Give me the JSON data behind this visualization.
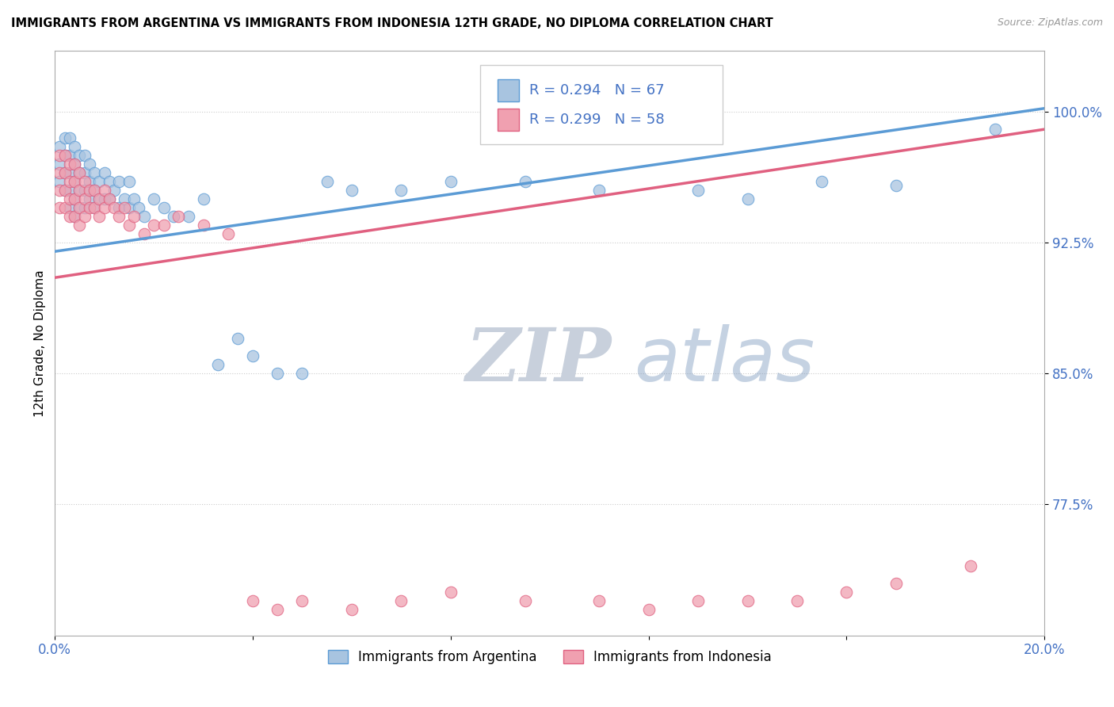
{
  "title": "IMMIGRANTS FROM ARGENTINA VS IMMIGRANTS FROM INDONESIA 12TH GRADE, NO DIPLOMA CORRELATION CHART",
  "source": "Source: ZipAtlas.com",
  "ylabel": "12th Grade, No Diploma",
  "xlim": [
    0.0,
    0.2
  ],
  "ylim": [
    0.7,
    1.035
  ],
  "ytick_labels": [
    "77.5%",
    "85.0%",
    "92.5%",
    "100.0%"
  ],
  "ytick_values": [
    0.775,
    0.85,
    0.925,
    1.0
  ],
  "legend_argentina": "Immigrants from Argentina",
  "legend_indonesia": "Immigrants from Indonesia",
  "R_argentina": "R = 0.294",
  "N_argentina": "N = 67",
  "R_indonesia": "R = 0.299",
  "N_indonesia": "N = 58",
  "color_argentina": "#a8c4e0",
  "color_indonesia": "#f0a0b0",
  "line_color_argentina": "#5b9bd5",
  "line_color_indonesia": "#e06080",
  "watermark_zip": "ZIP",
  "watermark_atlas": "atlas",
  "watermark_color_zip": "#c8d0dc",
  "watermark_color_atlas": "#7090b8",
  "argentina_x": [
    0.001,
    0.001,
    0.001,
    0.002,
    0.002,
    0.002,
    0.002,
    0.003,
    0.003,
    0.003,
    0.003,
    0.003,
    0.004,
    0.004,
    0.004,
    0.004,
    0.004,
    0.005,
    0.005,
    0.005,
    0.005,
    0.006,
    0.006,
    0.006,
    0.006,
    0.007,
    0.007,
    0.007,
    0.008,
    0.008,
    0.008,
    0.009,
    0.009,
    0.01,
    0.01,
    0.011,
    0.011,
    0.012,
    0.013,
    0.013,
    0.014,
    0.015,
    0.015,
    0.016,
    0.017,
    0.018,
    0.02,
    0.022,
    0.024,
    0.027,
    0.03,
    0.033,
    0.037,
    0.04,
    0.045,
    0.05,
    0.055,
    0.06,
    0.07,
    0.08,
    0.095,
    0.11,
    0.13,
    0.14,
    0.155,
    0.17,
    0.19
  ],
  "argentina_y": [
    0.98,
    0.97,
    0.96,
    0.985,
    0.975,
    0.965,
    0.955,
    0.985,
    0.975,
    0.965,
    0.955,
    0.945,
    0.98,
    0.97,
    0.96,
    0.95,
    0.94,
    0.975,
    0.965,
    0.955,
    0.945,
    0.975,
    0.965,
    0.955,
    0.945,
    0.97,
    0.96,
    0.95,
    0.965,
    0.955,
    0.945,
    0.96,
    0.95,
    0.965,
    0.95,
    0.96,
    0.95,
    0.955,
    0.96,
    0.945,
    0.95,
    0.96,
    0.945,
    0.95,
    0.945,
    0.94,
    0.95,
    0.945,
    0.94,
    0.94,
    0.95,
    0.855,
    0.87,
    0.86,
    0.85,
    0.85,
    0.96,
    0.955,
    0.955,
    0.96,
    0.96,
    0.955,
    0.955,
    0.95,
    0.96,
    0.958,
    0.99
  ],
  "indonesia_x": [
    0.001,
    0.001,
    0.001,
    0.001,
    0.002,
    0.002,
    0.002,
    0.002,
    0.003,
    0.003,
    0.003,
    0.003,
    0.004,
    0.004,
    0.004,
    0.004,
    0.005,
    0.005,
    0.005,
    0.005,
    0.006,
    0.006,
    0.006,
    0.007,
    0.007,
    0.008,
    0.008,
    0.009,
    0.009,
    0.01,
    0.01,
    0.011,
    0.012,
    0.013,
    0.014,
    0.015,
    0.016,
    0.018,
    0.02,
    0.022,
    0.025,
    0.03,
    0.035,
    0.04,
    0.045,
    0.05,
    0.06,
    0.07,
    0.08,
    0.095,
    0.11,
    0.12,
    0.13,
    0.14,
    0.15,
    0.16,
    0.17,
    0.185
  ],
  "indonesia_y": [
    0.975,
    0.965,
    0.955,
    0.945,
    0.975,
    0.965,
    0.955,
    0.945,
    0.97,
    0.96,
    0.95,
    0.94,
    0.97,
    0.96,
    0.95,
    0.94,
    0.965,
    0.955,
    0.945,
    0.935,
    0.96,
    0.95,
    0.94,
    0.955,
    0.945,
    0.955,
    0.945,
    0.95,
    0.94,
    0.955,
    0.945,
    0.95,
    0.945,
    0.94,
    0.945,
    0.935,
    0.94,
    0.93,
    0.935,
    0.935,
    0.94,
    0.935,
    0.93,
    0.72,
    0.715,
    0.72,
    0.715,
    0.72,
    0.725,
    0.72,
    0.72,
    0.715,
    0.72,
    0.72,
    0.72,
    0.725,
    0.73,
    0.74
  ],
  "trend_arg_x0": 0.0,
  "trend_arg_y0": 0.92,
  "trend_arg_x1": 0.2,
  "trend_arg_y1": 1.002,
  "trend_ind_x0": 0.0,
  "trend_ind_y0": 0.905,
  "trend_ind_x1": 0.2,
  "trend_ind_y1": 0.99
}
